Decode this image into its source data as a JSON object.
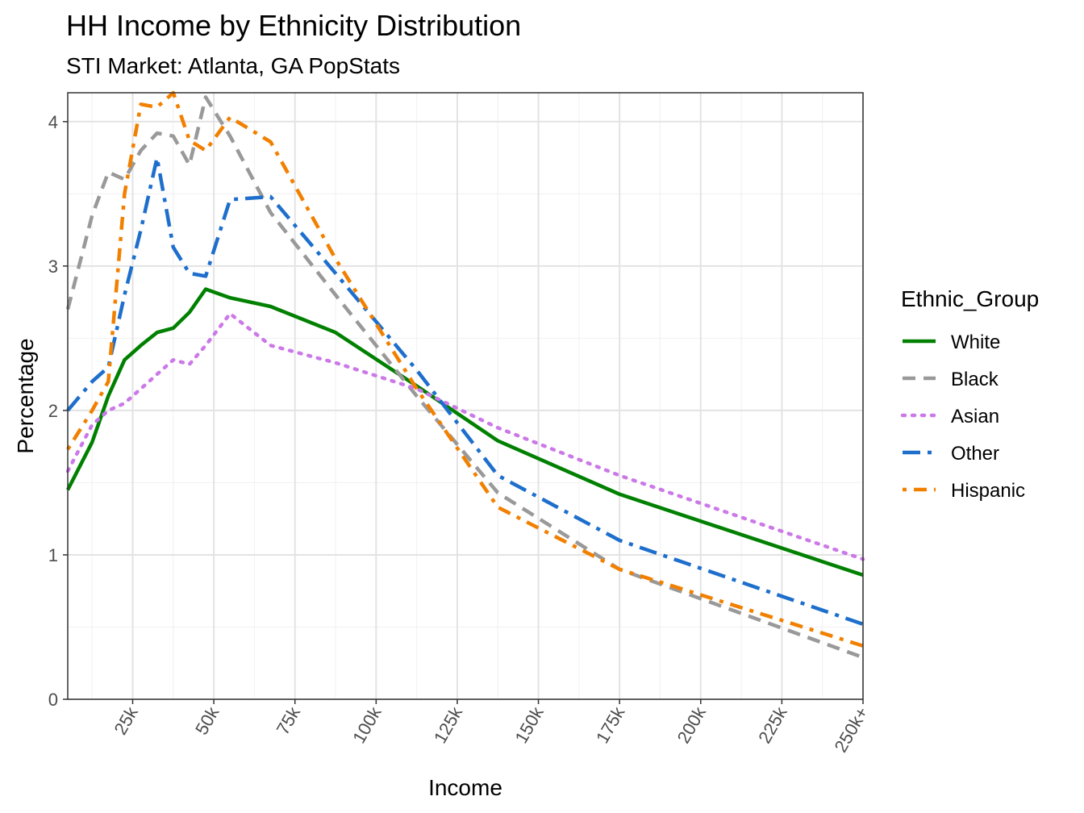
{
  "chart_data": {
    "type": "line",
    "title": "HH Income by Ethnicity Distribution",
    "subtitle": "STI Market: Atlanta, GA PopStats",
    "xlabel": "Income",
    "ylabel": "Percentage",
    "xlim": [
      5000,
      250000
    ],
    "ylim": [
      0,
      4.2
    ],
    "x_ticks": [
      {
        "value": 25000,
        "label": "25k"
      },
      {
        "value": 50000,
        "label": "50k"
      },
      {
        "value": 75000,
        "label": "75k"
      },
      {
        "value": 100000,
        "label": "100k"
      },
      {
        "value": 125000,
        "label": "125k"
      },
      {
        "value": 150000,
        "label": "150k"
      },
      {
        "value": 175000,
        "label": "175k"
      },
      {
        "value": 200000,
        "label": "200k"
      },
      {
        "value": 225000,
        "label": "225k"
      },
      {
        "value": 250000,
        "label": "250k+"
      }
    ],
    "y_ticks": [
      {
        "value": 0,
        "label": "0"
      },
      {
        "value": 1,
        "label": "1"
      },
      {
        "value": 2,
        "label": "2"
      },
      {
        "value": 3,
        "label": "3"
      },
      {
        "value": 4,
        "label": "4"
      }
    ],
    "grid": true,
    "legend": {
      "title": "Ethnic_Group",
      "position": "right"
    },
    "x": [
      5000,
      12500,
      17500,
      22500,
      27500,
      32500,
      37500,
      42500,
      47500,
      55000,
      67500,
      87500,
      112500,
      137500,
      175000,
      250000
    ],
    "series": [
      {
        "name": "White",
        "color": "#008000",
        "dash": "solid",
        "values": [
          1.45,
          1.78,
          2.1,
          2.35,
          2.45,
          2.54,
          2.57,
          2.68,
          2.84,
          2.78,
          2.72,
          2.54,
          2.17,
          1.79,
          1.42,
          0.86
        ]
      },
      {
        "name": "Black",
        "color": "#999999",
        "dash": "dashed",
        "values": [
          2.7,
          3.35,
          3.65,
          3.6,
          3.8,
          3.92,
          3.9,
          3.7,
          4.17,
          3.9,
          3.37,
          2.8,
          2.1,
          1.43,
          0.9,
          0.29
        ]
      },
      {
        "name": "Asian",
        "color": "#cc79e8",
        "dash": "dotted",
        "values": [
          1.58,
          1.9,
          2.0,
          2.05,
          2.15,
          2.25,
          2.35,
          2.32,
          2.45,
          2.67,
          2.45,
          2.33,
          2.15,
          1.88,
          1.55,
          0.97
        ]
      },
      {
        "name": "Other",
        "color": "#1e6fcc",
        "dash": "longdash-dot",
        "values": [
          2.0,
          2.2,
          2.3,
          2.8,
          3.25,
          3.75,
          3.13,
          2.95,
          2.93,
          3.46,
          3.48,
          2.95,
          2.28,
          1.55,
          1.1,
          0.52
        ]
      },
      {
        "name": "Hispanic",
        "color": "#f28000",
        "dash": "dot-dash",
        "values": [
          1.73,
          2.0,
          2.2,
          3.5,
          4.12,
          4.1,
          4.2,
          3.87,
          3.8,
          4.03,
          3.86,
          3.05,
          2.15,
          1.33,
          0.9,
          0.37
        ]
      }
    ]
  }
}
